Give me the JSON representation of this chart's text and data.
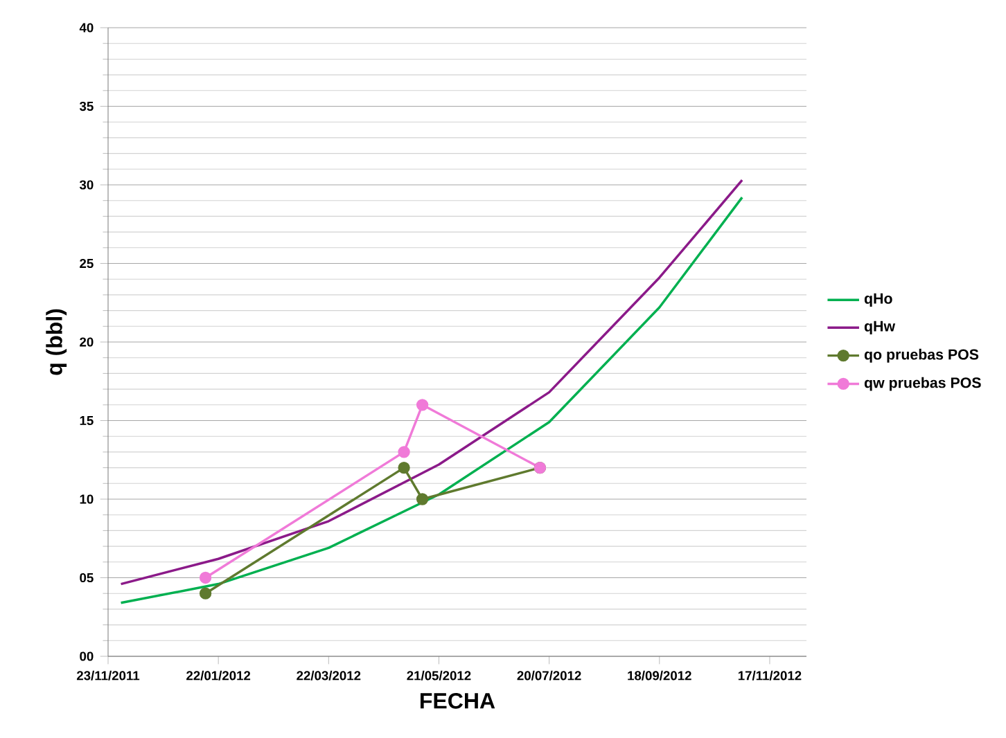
{
  "chart_data": {
    "type": "line",
    "xlabel": "FECHA",
    "ylabel": "q (bbl)",
    "xlim": [
      "2011-11-23",
      "2012-12-07"
    ],
    "xticks": [
      {
        "value": "2011-11-23",
        "label": "23/11/2011"
      },
      {
        "value": "2012-01-22",
        "label": "22/01/2012"
      },
      {
        "value": "2012-03-22",
        "label": "22/03/2012"
      },
      {
        "value": "2012-05-21",
        "label": "21/05/2012"
      },
      {
        "value": "2012-07-20",
        "label": "20/07/2012"
      },
      {
        "value": "2012-09-18",
        "label": "18/09/2012"
      },
      {
        "value": "2012-11-17",
        "label": "17/11/2012"
      }
    ],
    "ylim": [
      0,
      40
    ],
    "yticks": [
      {
        "value": 0,
        "label": "00"
      },
      {
        "value": 5,
        "label": "05"
      },
      10,
      15,
      20,
      25,
      30,
      35,
      40
    ],
    "grid": "y",
    "legend": "right",
    "line_style": "solid",
    "series": [
      {
        "name": "qHo",
        "color": "#00b050",
        "marker": "none",
        "x": [
          "2011-11-30",
          "2012-01-22",
          "2012-03-22",
          "2012-05-21",
          "2012-07-20",
          "2012-09-18",
          "2012-11-02"
        ],
        "values": [
          3.4,
          4.6,
          6.9,
          10.3,
          14.9,
          22.2,
          29.2
        ]
      },
      {
        "name": "qHw",
        "color": "#8b1a89",
        "marker": "none",
        "x": [
          "2011-11-30",
          "2012-01-22",
          "2012-03-22",
          "2012-05-21",
          "2012-07-20",
          "2012-09-18",
          "2012-11-02"
        ],
        "values": [
          4.6,
          6.2,
          8.6,
          12.2,
          16.8,
          24.1,
          30.3
        ]
      },
      {
        "name": "qo pruebas POS",
        "color": "#5f7a2e",
        "marker": "circle",
        "x": [
          "2012-01-15",
          "2012-05-02",
          "2012-05-12",
          "2012-07-15"
        ],
        "values": [
          4,
          12,
          10,
          12
        ]
      },
      {
        "name": "qw pruebas POS",
        "color": "#f07ad8",
        "marker": "circle",
        "x": [
          "2012-01-15",
          "2012-05-02",
          "2012-05-12",
          "2012-07-15"
        ],
        "values": [
          5,
          13,
          16,
          12
        ]
      }
    ]
  }
}
